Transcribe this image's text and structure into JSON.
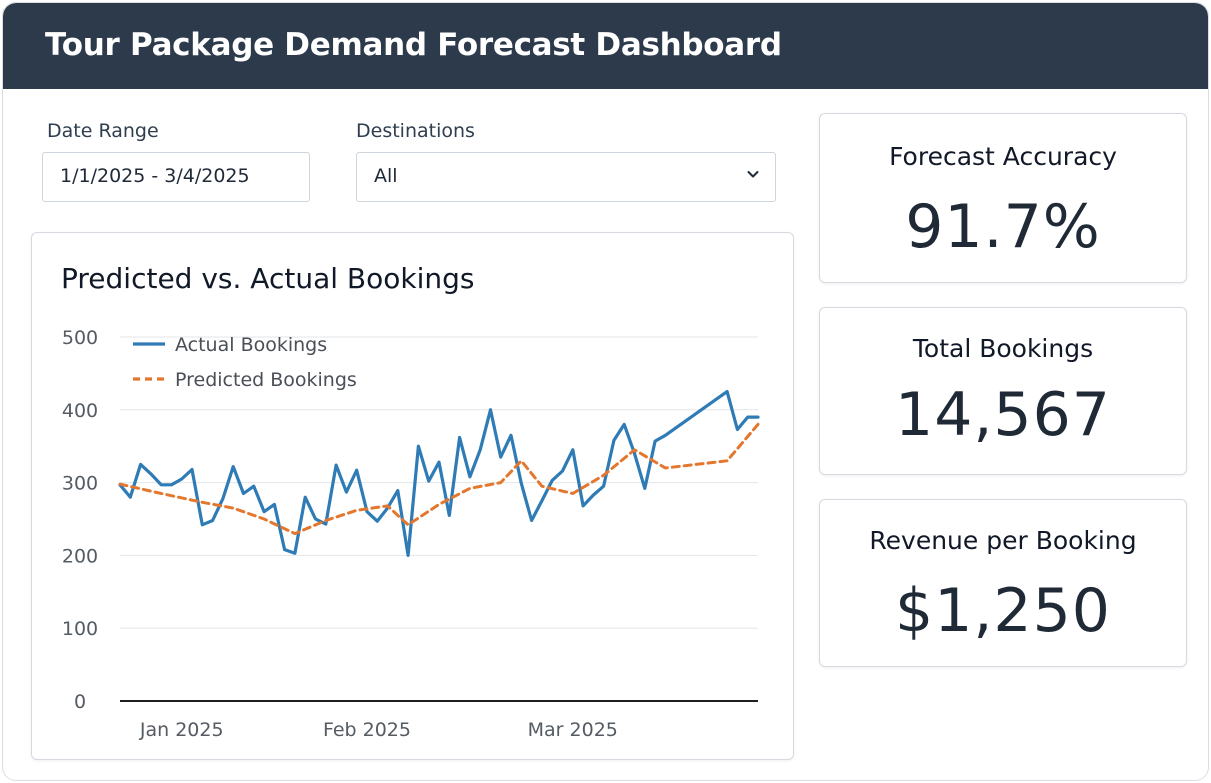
{
  "header": {
    "title": "Tour Package Demand Forecast Dashboard"
  },
  "filters": {
    "date_range": {
      "label": "Date Range",
      "value": "1/1/2025 - 3/4/2025"
    },
    "destinations": {
      "label": "Destinations",
      "value": "All"
    }
  },
  "kpis": {
    "forecast_accuracy": {
      "label": "Forecast Accuracy",
      "value": "91.7%"
    },
    "total_bookings": {
      "label": "Total Bookings",
      "value": "14,567"
    },
    "revenue_per_booking": {
      "label": "Revenue per Booking",
      "value": "$1,250"
    }
  },
  "colors": {
    "header_bg": "#2c3a4b",
    "actual": "#2e7bb6",
    "predicted": "#e4772e"
  },
  "chart_data": {
    "type": "line",
    "title": "Predicted vs. Actual Bookings",
    "xlabel": "",
    "ylabel": "",
    "ylim": [
      0,
      500
    ],
    "yticks": [
      "0",
      "100",
      "200",
      "300",
      "400",
      "500"
    ],
    "xticks": [
      {
        "label": "Jan 2025",
        "x": "2025-01-07"
      },
      {
        "label": "Feb 2025",
        "x": "2025-01-25"
      },
      {
        "label": "Mar 2025",
        "x": "2025-02-14"
      }
    ],
    "xrange": [
      "2025-01-01",
      "2025-03-04"
    ],
    "grid": true,
    "legend": "top-left",
    "series": [
      {
        "name": "Actual Bookings",
        "style": "solid",
        "x": [
          "2025-01-01",
          "2025-01-02",
          "2025-01-03",
          "2025-01-04",
          "2025-01-05",
          "2025-01-06",
          "2025-01-07",
          "2025-01-08",
          "2025-01-09",
          "2025-01-10",
          "2025-01-11",
          "2025-01-12",
          "2025-01-13",
          "2025-01-14",
          "2025-01-15",
          "2025-01-16",
          "2025-01-17",
          "2025-01-18",
          "2025-01-19",
          "2025-01-20",
          "2025-01-21",
          "2025-01-22",
          "2025-01-23",
          "2025-01-24",
          "2025-01-25",
          "2025-01-26",
          "2025-01-27",
          "2025-01-28",
          "2025-01-29",
          "2025-01-30",
          "2025-01-31",
          "2025-02-01",
          "2025-02-02",
          "2025-02-03",
          "2025-02-04",
          "2025-02-05",
          "2025-02-06",
          "2025-02-07",
          "2025-02-08",
          "2025-02-09",
          "2025-02-10",
          "2025-02-11",
          "2025-02-12",
          "2025-02-13",
          "2025-02-14",
          "2025-02-15",
          "2025-02-16",
          "2025-02-17",
          "2025-02-18",
          "2025-02-19",
          "2025-02-20",
          "2025-02-21",
          "2025-02-22",
          "2025-02-23",
          "2025-03-01",
          "2025-03-02",
          "2025-03-03",
          "2025-03-04"
        ],
        "values": [
          297,
          280,
          325,
          312,
          297,
          297,
          305,
          318,
          242,
          248,
          278,
          322,
          285,
          295,
          260,
          270,
          208,
          203,
          280,
          250,
          243,
          324,
          287,
          317,
          260,
          247,
          265,
          289,
          200,
          350,
          302,
          328,
          255,
          362,
          308,
          345,
          400,
          335,
          365,
          299,
          248,
          275,
          303,
          316,
          345,
          268,
          283,
          295,
          358,
          380,
          340,
          292,
          357,
          365,
          425,
          373,
          390,
          390
        ]
      },
      {
        "name": "Predicted Bookings",
        "style": "dashed",
        "x": [
          "2025-01-01",
          "2025-01-05",
          "2025-01-09",
          "2025-01-12",
          "2025-01-15",
          "2025-01-18",
          "2025-01-21",
          "2025-01-24",
          "2025-01-27",
          "2025-01-29",
          "2025-02-01",
          "2025-02-04",
          "2025-02-07",
          "2025-02-09",
          "2025-02-11",
          "2025-02-14",
          "2025-02-17",
          "2025-02-20",
          "2025-02-23",
          "2025-03-01",
          "2025-03-04"
        ],
        "values": [
          298,
          285,
          273,
          265,
          250,
          230,
          248,
          262,
          268,
          242,
          270,
          292,
          300,
          330,
          295,
          285,
          310,
          345,
          320,
          330,
          380
        ]
      }
    ]
  }
}
